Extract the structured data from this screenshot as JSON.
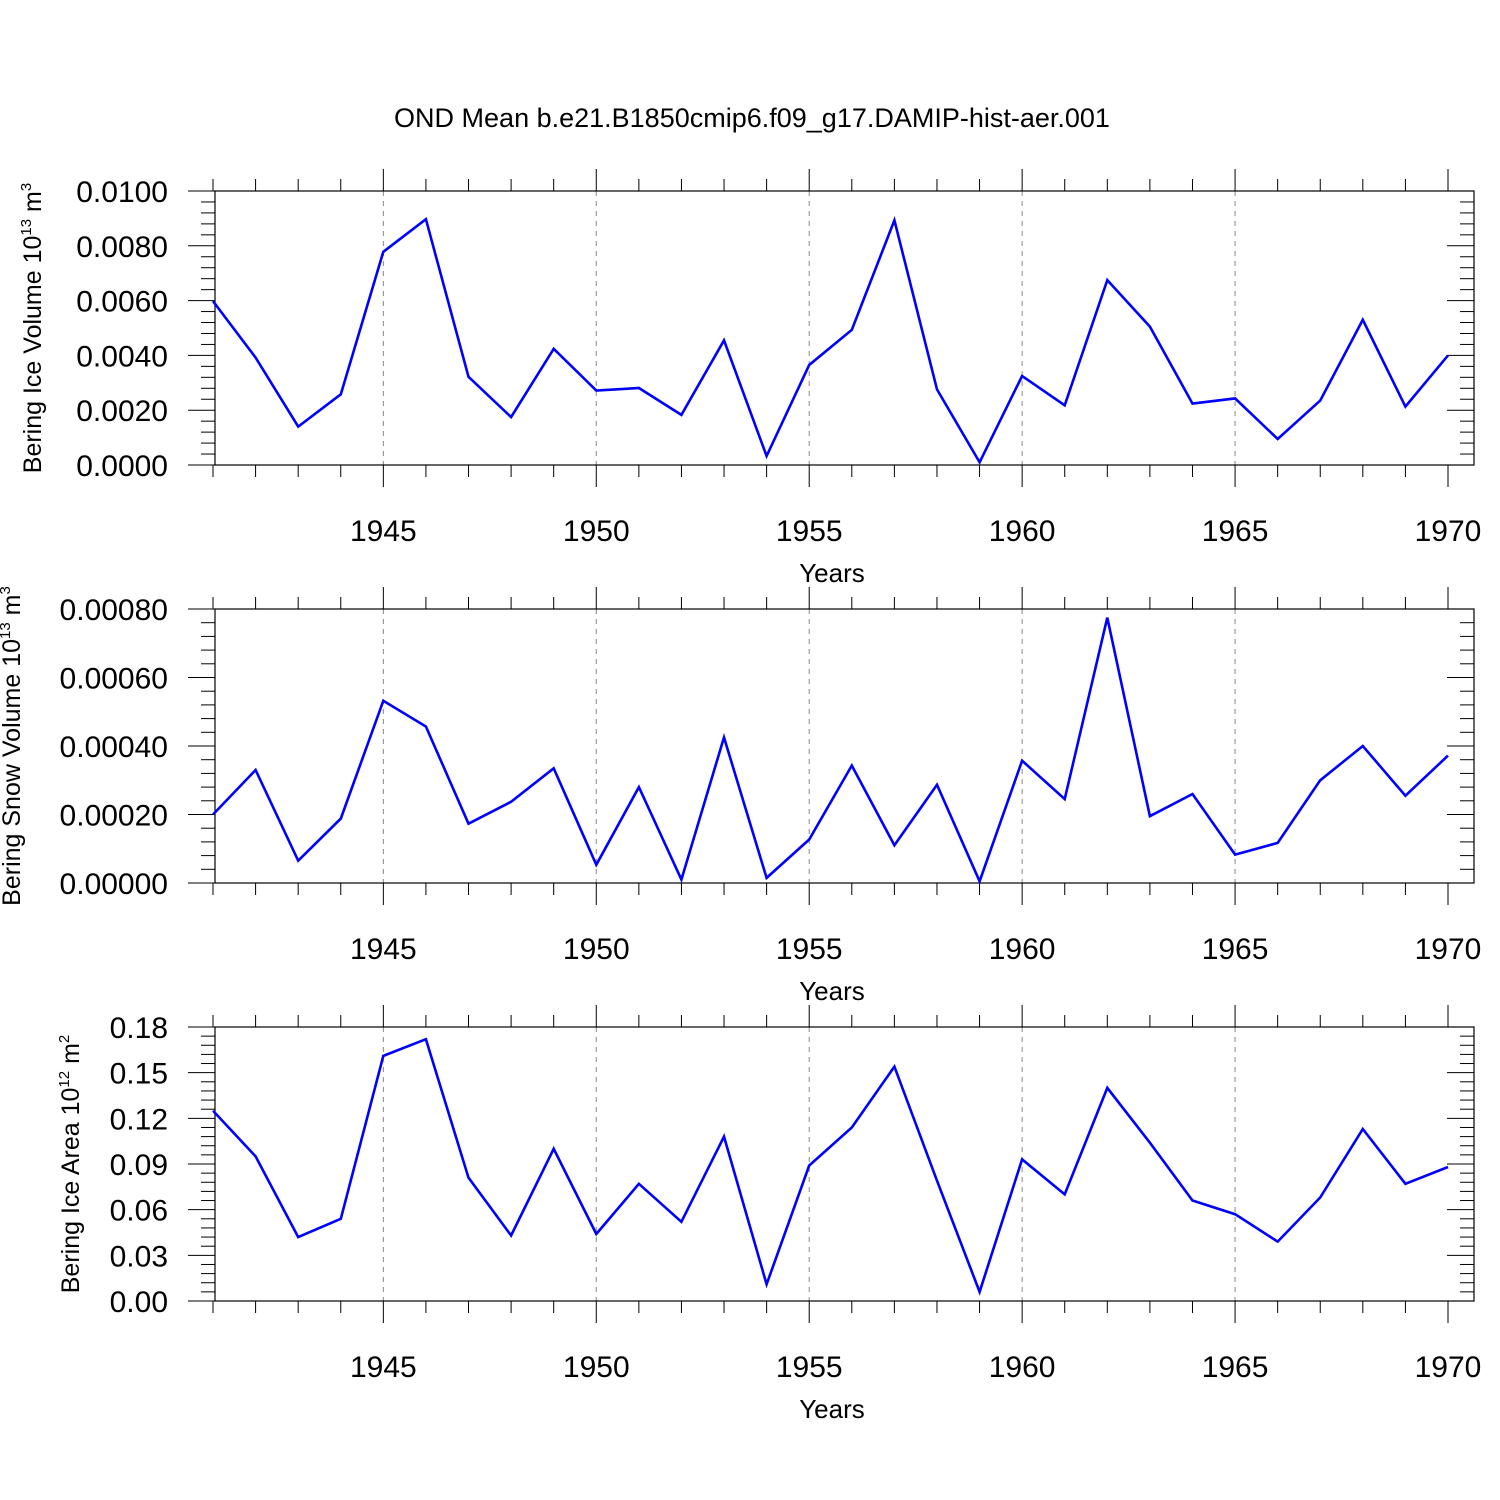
{
  "title": "OND Mean b.e21.B1850cmip6.f09_g17.DAMIP-hist-aer.001",
  "colors": {
    "line": "#0000ff",
    "grid": "#888888",
    "axis": "#000000"
  },
  "chart_data": [
    {
      "type": "line",
      "title": "OND Mean b.e21.B1850cmip6.f09_g17.DAMIP-hist-aer.001",
      "xlabel": "Years",
      "ylabel": "Bering Ice Volume 10",
      "ylabel_exp": "13",
      "ylabel_unit": " m",
      "ylabel_unit_exp": "3",
      "xlim": [
        1941,
        1971
      ],
      "ylim": [
        0,
        0.01
      ],
      "xticks": [
        1945,
        1950,
        1955,
        1960,
        1965,
        1970
      ],
      "xtick_labels": [
        "1945",
        "1950",
        "1955",
        "1960",
        "1965",
        "1970"
      ],
      "yticks": [
        0,
        0.002,
        0.004,
        0.006,
        0.008,
        0.01
      ],
      "ytick_labels": [
        "0.0000",
        "0.0020",
        "0.0040",
        "0.0060",
        "0.0080",
        "0.0100"
      ],
      "grid": "x-dashed",
      "series": [
        {
          "name": "Bering Ice Volume",
          "x": [
            1941,
            1942,
            1943,
            1944,
            1945,
            1946,
            1947,
            1948,
            1949,
            1950,
            1951,
            1952,
            1953,
            1954,
            1955,
            1956,
            1957,
            1958,
            1959,
            1960,
            1961,
            1962,
            1963,
            1964,
            1965,
            1966,
            1967,
            1968,
            1969,
            1970
          ],
          "values": [
            0.00598,
            0.00392,
            0.0014,
            0.00258,
            0.00778,
            0.00897,
            0.00322,
            0.00175,
            0.00424,
            0.00272,
            0.00281,
            0.00183,
            0.00455,
            0.00033,
            0.00365,
            0.00493,
            0.00893,
            0.00276,
            0.0001,
            0.00325,
            0.00218,
            0.00675,
            0.00505,
            0.00224,
            0.00243,
            0.00095,
            0.00235,
            0.0053,
            0.00213,
            0.004
          ]
        }
      ]
    },
    {
      "type": "line",
      "xlabel": "Years",
      "ylabel": "Bering Snow Volume 10",
      "ylabel_exp": "13",
      "ylabel_unit": " m",
      "ylabel_unit_exp": "3",
      "xlim": [
        1941,
        1971
      ],
      "ylim": [
        0,
        0.0008
      ],
      "xticks": [
        1945,
        1950,
        1955,
        1960,
        1965,
        1970
      ],
      "xtick_labels": [
        "1945",
        "1950",
        "1955",
        "1960",
        "1965",
        "1970"
      ],
      "yticks": [
        0,
        0.0002,
        0.0004,
        0.0006,
        0.0008
      ],
      "ytick_labels": [
        "0.00000",
        "0.00020",
        "0.00040",
        "0.00060",
        "0.00080"
      ],
      "grid": "x-dashed",
      "series": [
        {
          "name": "Bering Snow Volume",
          "x": [
            1941,
            1942,
            1943,
            1944,
            1945,
            1946,
            1947,
            1948,
            1949,
            1950,
            1951,
            1952,
            1953,
            1954,
            1955,
            1956,
            1957,
            1958,
            1959,
            1960,
            1961,
            1962,
            1963,
            1964,
            1965,
            1966,
            1967,
            1968,
            1969,
            1970
          ],
          "values": [
            0.0002,
            0.00033,
            6.5e-05,
            0.000188,
            0.000532,
            0.000457,
            0.000173,
            0.000237,
            0.000335,
            5.3e-05,
            0.00028,
            1e-05,
            0.000425,
            1.5e-05,
            0.000127,
            0.000343,
            0.00011,
            0.000287,
            5e-06,
            0.000357,
            0.000245,
            0.000775,
            0.000195,
            0.00026,
            8.3e-05,
            0.000117,
            0.0003,
            0.0004,
            0.000255,
            0.000372
          ]
        }
      ]
    },
    {
      "type": "line",
      "xlabel": "Years",
      "ylabel": "Bering Ice Area 10",
      "ylabel_exp": "12",
      "ylabel_unit": " m",
      "ylabel_unit_exp": "2",
      "xlim": [
        1941,
        1971
      ],
      "ylim": [
        0,
        0.18
      ],
      "xticks": [
        1945,
        1950,
        1955,
        1960,
        1965,
        1970
      ],
      "xtick_labels": [
        "1945",
        "1950",
        "1955",
        "1960",
        "1965",
        "1970"
      ],
      "yticks": [
        0,
        0.03,
        0.06,
        0.09,
        0.12,
        0.15,
        0.18
      ],
      "ytick_labels": [
        "0.00",
        "0.03",
        "0.06",
        "0.09",
        "0.12",
        "0.15",
        "0.18"
      ],
      "grid": "x-dashed",
      "series": [
        {
          "name": "Bering Ice Area",
          "x": [
            1941,
            1942,
            1943,
            1944,
            1945,
            1946,
            1947,
            1948,
            1949,
            1950,
            1951,
            1952,
            1953,
            1954,
            1955,
            1956,
            1957,
            1958,
            1959,
            1960,
            1961,
            1962,
            1963,
            1964,
            1965,
            1966,
            1967,
            1968,
            1969,
            1970
          ],
          "values": [
            0.125,
            0.095,
            0.042,
            0.054,
            0.161,
            0.172,
            0.081,
            0.043,
            0.1,
            0.044,
            0.077,
            0.052,
            0.108,
            0.011,
            0.089,
            0.114,
            0.154,
            0.079,
            0.006,
            0.093,
            0.07,
            0.14,
            0.104,
            0.066,
            0.057,
            0.039,
            0.068,
            0.113,
            0.077,
            0.088
          ]
        }
      ]
    }
  ]
}
